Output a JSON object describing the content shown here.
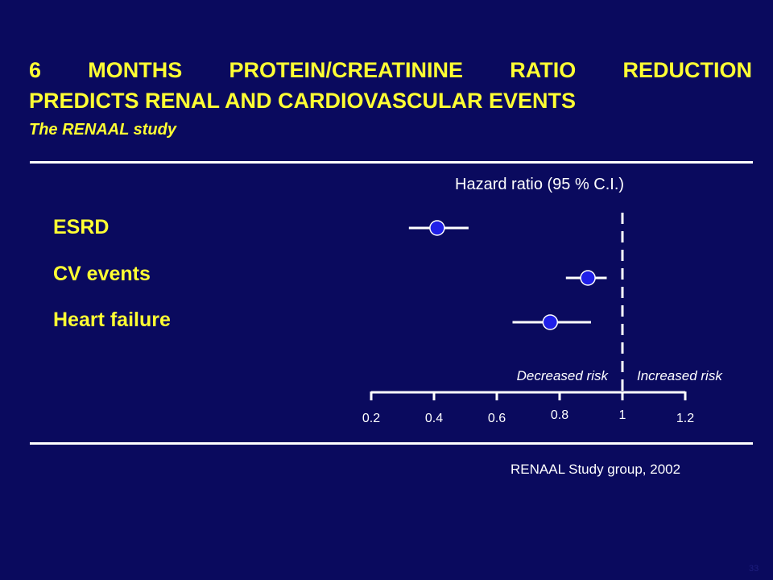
{
  "slide": {
    "title_line1": "6 MONTHS PROTEIN/CREATININE RATIO REDUCTION",
    "title_line2": "PREDICTS RENAL AND CARDIOVASCULAR EVENTS",
    "subtitle": "The RENAAL study",
    "source": "RENAAL Study group, 2002",
    "page_number": "33"
  },
  "colors": {
    "background": "#0a0a5e",
    "title": "#ffff33",
    "marker": "#1f1fe8",
    "text": "#ffffff"
  },
  "chart_data": {
    "type": "scatter",
    "subtype": "forest-plot",
    "xlabel": "Hazard ratio (95 % C.I.)",
    "xlim": [
      0.2,
      1.2
    ],
    "xticks": [
      0.2,
      0.4,
      0.6,
      0.8,
      1,
      1.2
    ],
    "xtick_labels": [
      "0.2",
      "0.4",
      "0.6",
      "0.8",
      "1",
      "1.2"
    ],
    "reference_line": 1,
    "region_labels": {
      "left": "Decreased risk",
      "right": "Increased risk"
    },
    "rows": [
      {
        "label": "ESRD",
        "hr": 0.41,
        "ci_low": 0.32,
        "ci_high": 0.51
      },
      {
        "label": "CV events",
        "hr": 0.89,
        "ci_low": 0.82,
        "ci_high": 0.95
      },
      {
        "label": "Heart failure",
        "hr": 0.77,
        "ci_low": 0.65,
        "ci_high": 0.9
      }
    ]
  }
}
